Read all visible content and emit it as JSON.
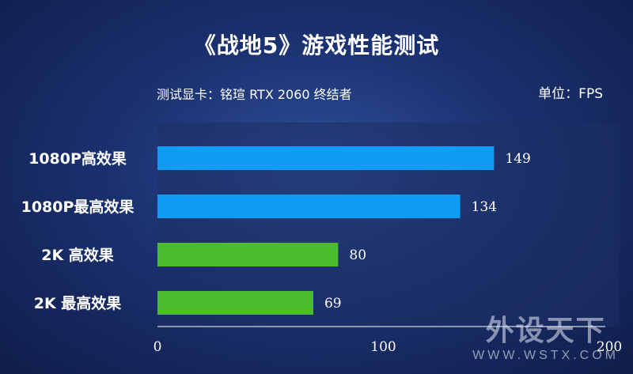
{
  "title": "《战地5》游戏性能测试",
  "subtitle": "测试显卡：铭瑄 RTX 2060 终结者",
  "unit": "单位：FPS",
  "watermark": {
    "main": "外设天下",
    "sub": "WWW.WSTX.COM"
  },
  "colors": {
    "bar_1080p": "#0f9cf5",
    "bar_2k": "#4cbb2c"
  },
  "chart_data": {
    "type": "bar",
    "orientation": "horizontal",
    "categories": [
      "1080P高效果",
      "1080P最高效果",
      "2K 高效果",
      "2K 最高效果"
    ],
    "values": [
      149,
      134,
      80,
      69
    ],
    "bar_colors": [
      "#0f9cf5",
      "#0f9cf5",
      "#4cbb2c",
      "#4cbb2c"
    ],
    "xticks": [
      "0",
      "100",
      "200"
    ],
    "xlim": [
      0,
      200
    ],
    "grid": false
  }
}
